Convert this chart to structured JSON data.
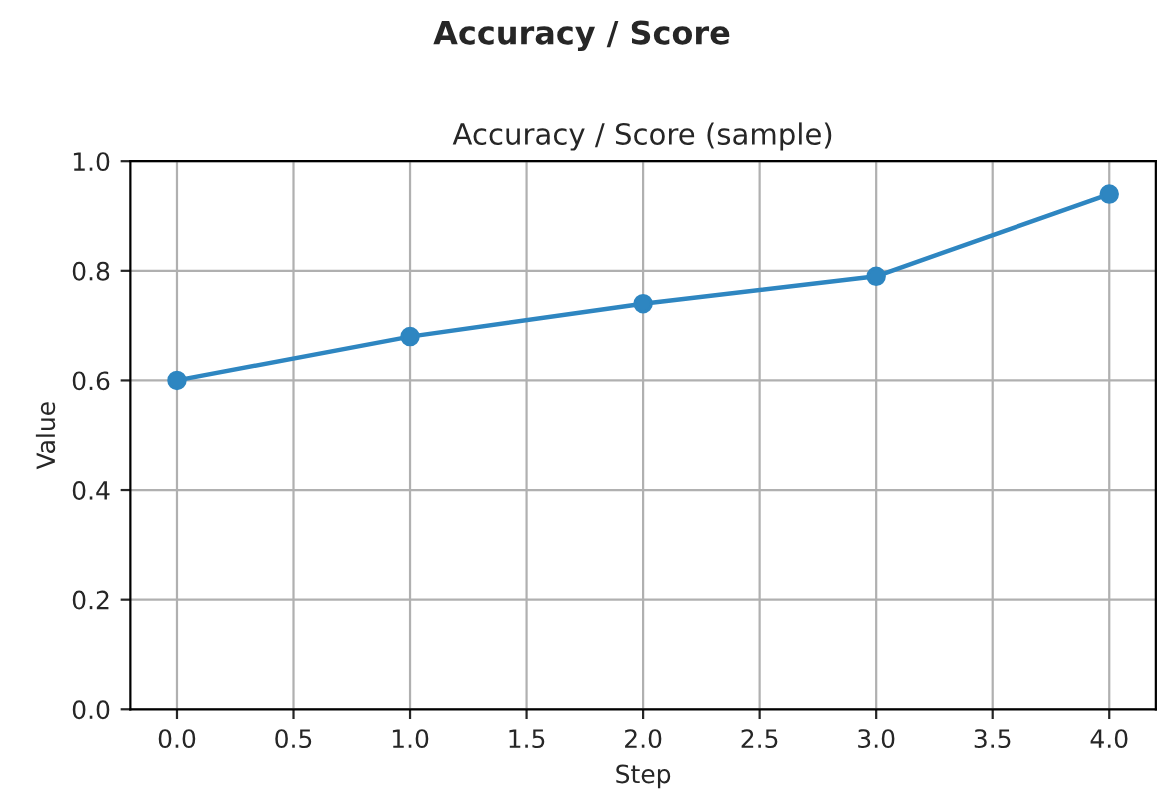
{
  "chart_data": {
    "type": "line",
    "title": "Accuracy / Score",
    "subtitle": "Accuracy / Score (sample)",
    "xlabel": "Step",
    "ylabel": "Value",
    "x": [
      0,
      1,
      2,
      3,
      4
    ],
    "series": [
      {
        "color": "#2e86c1",
        "values": [
          0.6,
          0.68,
          0.74,
          0.79,
          0.94
        ]
      }
    ],
    "xlim": [
      -0.2,
      4.2
    ],
    "xticks": [
      {
        "value": 0,
        "label": "0.0"
      },
      {
        "value": 0.5,
        "label": "0.5"
      },
      {
        "value": 1,
        "label": "1.0"
      },
      {
        "value": 1.5,
        "label": "1.5"
      },
      {
        "value": 2,
        "label": "2.0"
      },
      {
        "value": 2.5,
        "label": "2.5"
      },
      {
        "value": 3,
        "label": "3.0"
      },
      {
        "value": 3.5,
        "label": "3.5"
      },
      {
        "value": 4,
        "label": "4.0"
      }
    ],
    "ylim": [
      0,
      1
    ],
    "yticks": [
      {
        "value": 0,
        "label": "0.0"
      },
      {
        "value": 0.2,
        "label": "0.2"
      },
      {
        "value": 0.4,
        "label": "0.4"
      },
      {
        "value": 0.6,
        "label": "0.6"
      },
      {
        "value": 0.8,
        "label": "0.8"
      },
      {
        "value": 1,
        "label": "1.0"
      }
    ],
    "grid": true,
    "marker": "circle",
    "line_style": "solid",
    "legend": false
  }
}
